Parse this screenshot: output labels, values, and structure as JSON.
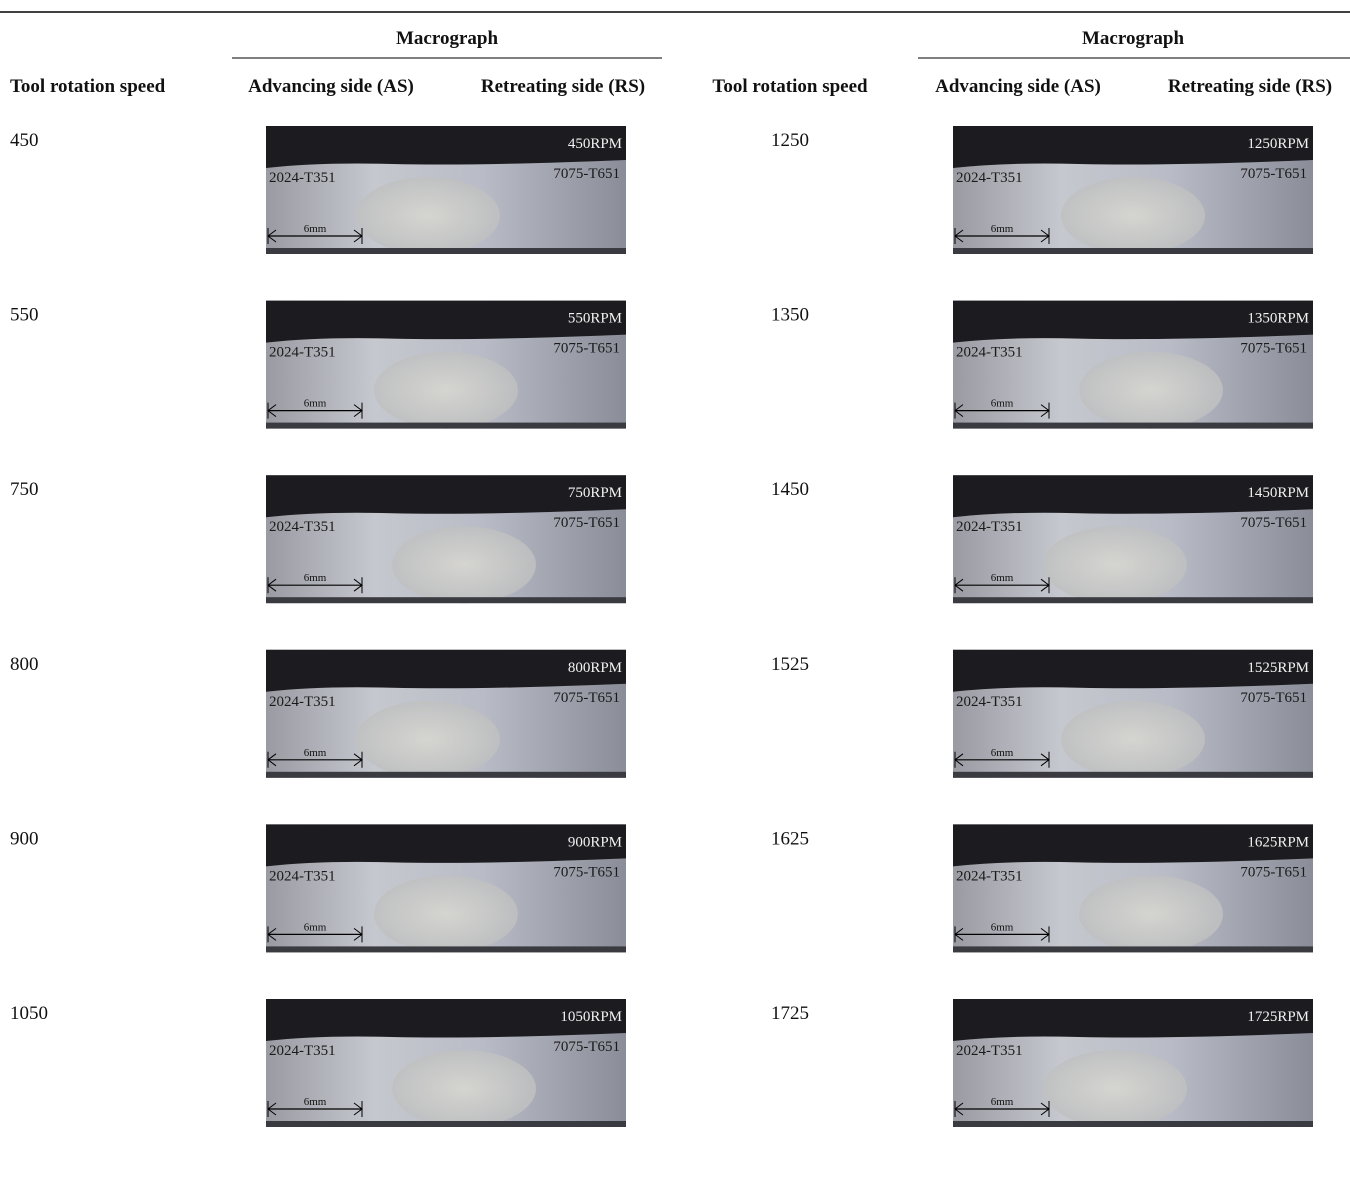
{
  "table": {
    "header": {
      "group_left": "Macrograph",
      "group_right": "Macrograph",
      "columns": [
        "Tool rotation speed",
        "Advancing side (AS)",
        "Retreating side (RS)",
        "Tool rotation speed",
        "Advancing side (AS)",
        "Retreating side (RS)"
      ]
    },
    "rows": [
      {
        "left_speed": "450",
        "left_image": {
          "rpm": "450RPM",
          "as": "2024-T351",
          "rs": "7075-T651",
          "scale": "6mm"
        },
        "right_speed": "1250",
        "right_image": {
          "rpm": "1250RPM",
          "as": "2024-T351",
          "rs": "7075-T651",
          "scale": "6mm"
        }
      },
      {
        "left_speed": "550",
        "left_image": {
          "rpm": "550RPM",
          "as": "2024-T351",
          "rs": "7075-T651",
          "scale": "6mm"
        },
        "right_speed": "1350",
        "right_image": {
          "rpm": "1350RPM",
          "as": "2024-T351",
          "rs": "7075-T651",
          "scale": "6mm"
        }
      },
      {
        "left_speed": "750",
        "left_image": {
          "rpm": "750RPM",
          "as": "2024-T351",
          "rs": "7075-T651",
          "scale": "6mm"
        },
        "right_speed": "1450",
        "right_image": {
          "rpm": "1450RPM",
          "as": "2024-T351",
          "rs": "7075-T651",
          "scale": "6mm"
        }
      },
      {
        "left_speed": "800",
        "left_image": {
          "rpm": "800RPM",
          "as": "2024-T351",
          "rs": "7075-T651",
          "scale": "6mm"
        },
        "right_speed": "1525",
        "right_image": {
          "rpm": "1525RPM",
          "as": "2024-T351",
          "rs": "7075-T651",
          "scale": "6mm"
        }
      },
      {
        "left_speed": "900",
        "left_image": {
          "rpm": "900RPM",
          "as": "2024-T351",
          "rs": "7075-T651",
          "scale": "6mm"
        },
        "right_speed": "1625",
        "right_image": {
          "rpm": "1625RPM",
          "as": "2024-T351",
          "rs": "7075-T651",
          "scale": "6mm"
        }
      },
      {
        "left_speed": "1050",
        "left_image": {
          "rpm": "1050RPM",
          "as": "2024-T351",
          "rs": "7075-T651",
          "scale": "6mm"
        },
        "right_speed": "1725",
        "right_image": {
          "rpm": "1725RPM",
          "as": "2024-T351",
          "scale": "6mm"
        }
      }
    ]
  }
}
